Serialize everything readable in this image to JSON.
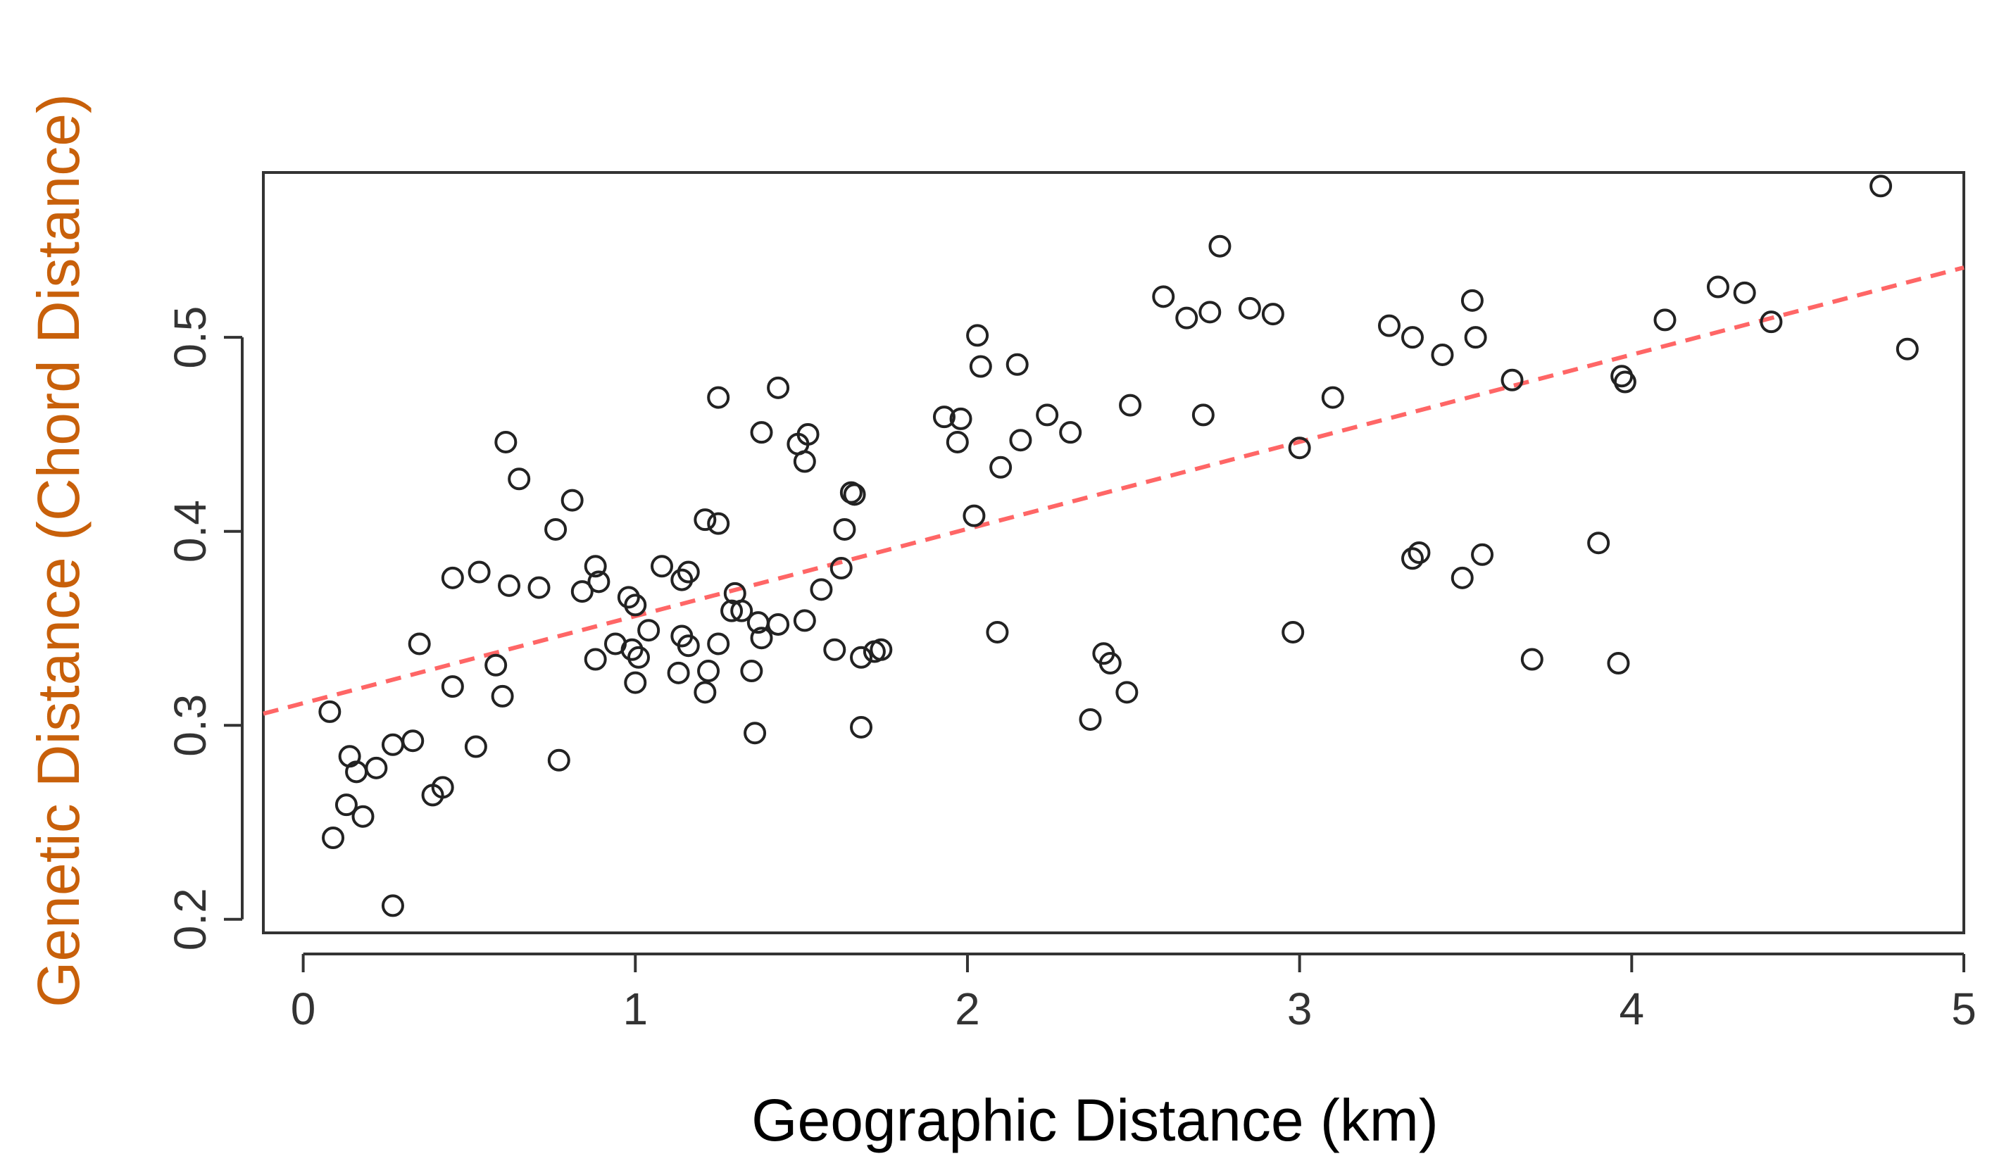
{
  "chart_data": {
    "type": "scatter",
    "title": "",
    "xlabel": "Geographic Distance (km)",
    "ylabel": "Genetic Distance (Chord Distance)",
    "xlim": [
      -0.12,
      5.0
    ],
    "ylim": [
      0.193,
      0.585
    ],
    "x_ticks": [
      0,
      1,
      2,
      3,
      4,
      5
    ],
    "x_tick_labels": [
      "0",
      "1",
      "2",
      "3",
      "4",
      "5"
    ],
    "y_ticks": [
      0.2,
      0.3,
      0.4,
      0.5
    ],
    "y_tick_labels": [
      "0.2",
      "0.3",
      "0.4",
      "0.5"
    ],
    "grid": false,
    "colors": {
      "points": "#222222",
      "trendline": "#ff6666",
      "xlabel": "#000000",
      "ylabel": "#c8600a"
    },
    "trendline": {
      "type": "linear",
      "x": [
        -0.12,
        5.0
      ],
      "y": [
        0.306,
        0.536
      ]
    },
    "points": [
      [
        4.75,
        0.578
      ],
      [
        2.76,
        0.547
      ],
      [
        4.26,
        0.526
      ],
      [
        4.34,
        0.523
      ],
      [
        2.59,
        0.521
      ],
      [
        3.52,
        0.519
      ],
      [
        2.85,
        0.515
      ],
      [
        2.73,
        0.513
      ],
      [
        2.92,
        0.512
      ],
      [
        2.66,
        0.51
      ],
      [
        4.1,
        0.509
      ],
      [
        4.42,
        0.508
      ],
      [
        3.27,
        0.506
      ],
      [
        2.03,
        0.501
      ],
      [
        3.34,
        0.5
      ],
      [
        3.53,
        0.5
      ],
      [
        4.83,
        0.494
      ],
      [
        3.43,
        0.491
      ],
      [
        2.15,
        0.486
      ],
      [
        2.04,
        0.485
      ],
      [
        3.97,
        0.48
      ],
      [
        3.98,
        0.477
      ],
      [
        3.64,
        0.478
      ],
      [
        1.43,
        0.474
      ],
      [
        1.25,
        0.469
      ],
      [
        3.1,
        0.469
      ],
      [
        2.49,
        0.465
      ],
      [
        2.71,
        0.46
      ],
      [
        2.24,
        0.46
      ],
      [
        1.93,
        0.459
      ],
      [
        1.98,
        0.458
      ],
      [
        2.31,
        0.451
      ],
      [
        1.38,
        0.451
      ],
      [
        1.52,
        0.45
      ],
      [
        2.16,
        0.447
      ],
      [
        1.97,
        0.446
      ],
      [
        0.61,
        0.446
      ],
      [
        1.49,
        0.445
      ],
      [
        3.0,
        0.443
      ],
      [
        1.51,
        0.436
      ],
      [
        2.1,
        0.433
      ],
      [
        0.65,
        0.427
      ],
      [
        1.65,
        0.42
      ],
      [
        1.66,
        0.419
      ],
      [
        0.81,
        0.416
      ],
      [
        2.02,
        0.408
      ],
      [
        1.21,
        0.406
      ],
      [
        1.25,
        0.404
      ],
      [
        0.76,
        0.401
      ],
      [
        1.63,
        0.401
      ],
      [
        3.9,
        0.394
      ],
      [
        3.34,
        0.386
      ],
      [
        3.36,
        0.389
      ],
      [
        3.55,
        0.388
      ],
      [
        1.08,
        0.382
      ],
      [
        0.88,
        0.382
      ],
      [
        0.53,
        0.379
      ],
      [
        1.16,
        0.379
      ],
      [
        1.62,
        0.381
      ],
      [
        0.45,
        0.376
      ],
      [
        3.49,
        0.376
      ],
      [
        1.14,
        0.375
      ],
      [
        0.89,
        0.374
      ],
      [
        0.62,
        0.372
      ],
      [
        0.71,
        0.371
      ],
      [
        0.84,
        0.369
      ],
      [
        1.56,
        0.37
      ],
      [
        1.3,
        0.368
      ],
      [
        0.98,
        0.366
      ],
      [
        1.0,
        0.362
      ],
      [
        1.32,
        0.359
      ],
      [
        1.29,
        0.359
      ],
      [
        1.37,
        0.353
      ],
      [
        1.51,
        0.354
      ],
      [
        1.43,
        0.352
      ],
      [
        1.04,
        0.349
      ],
      [
        1.14,
        0.346
      ],
      [
        2.09,
        0.348
      ],
      [
        2.98,
        0.348
      ],
      [
        1.38,
        0.345
      ],
      [
        0.35,
        0.342
      ],
      [
        0.94,
        0.342
      ],
      [
        1.25,
        0.342
      ],
      [
        1.16,
        0.341
      ],
      [
        0.99,
        0.339
      ],
      [
        1.6,
        0.339
      ],
      [
        1.74,
        0.339
      ],
      [
        1.72,
        0.338
      ],
      [
        2.41,
        0.337
      ],
      [
        1.68,
        0.335
      ],
      [
        1.01,
        0.335
      ],
      [
        0.88,
        0.334
      ],
      [
        3.7,
        0.334
      ],
      [
        2.43,
        0.332
      ],
      [
        3.96,
        0.332
      ],
      [
        0.58,
        0.331
      ],
      [
        1.35,
        0.328
      ],
      [
        1.13,
        0.327
      ],
      [
        1.22,
        0.328
      ],
      [
        1.0,
        0.322
      ],
      [
        0.45,
        0.32
      ],
      [
        2.48,
        0.317
      ],
      [
        1.21,
        0.317
      ],
      [
        0.6,
        0.315
      ],
      [
        0.08,
        0.307
      ],
      [
        2.37,
        0.303
      ],
      [
        1.68,
        0.299
      ],
      [
        1.36,
        0.296
      ],
      [
        0.33,
        0.292
      ],
      [
        0.27,
        0.29
      ],
      [
        0.52,
        0.289
      ],
      [
        0.14,
        0.284
      ],
      [
        0.77,
        0.282
      ],
      [
        0.22,
        0.278
      ],
      [
        0.16,
        0.276
      ],
      [
        0.42,
        0.268
      ],
      [
        0.39,
        0.264
      ],
      [
        0.13,
        0.259
      ],
      [
        0.18,
        0.253
      ],
      [
        0.09,
        0.242
      ],
      [
        0.27,
        0.207
      ]
    ]
  }
}
